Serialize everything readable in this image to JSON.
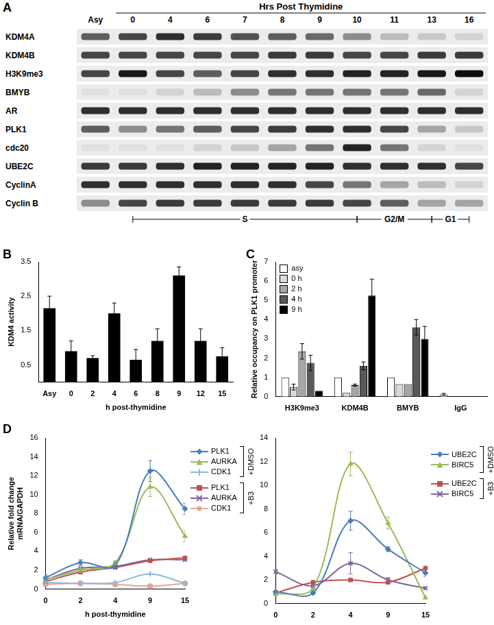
{
  "chart_data": [
    {
      "type": "blot",
      "label": "A",
      "header": "Hrs Post Thymidine",
      "header_span": [
        "0",
        "16"
      ],
      "categories": [
        "Asy",
        "0",
        "4",
        "6",
        "7",
        "8",
        "9",
        "10",
        "11",
        "13",
        "16"
      ],
      "series": [
        {
          "name": "KDM4A",
          "values": [
            0.6,
            0.7,
            0.8,
            0.75,
            0.65,
            0.6,
            0.55,
            0.4,
            0.2,
            0.15,
            0.1
          ]
        },
        {
          "name": "KDM4B",
          "values": [
            0.7,
            0.7,
            0.7,
            0.7,
            0.7,
            0.75,
            0.75,
            0.7,
            0.7,
            0.75,
            0.75
          ]
        },
        {
          "name": "H3K9me3",
          "values": [
            0.7,
            0.9,
            0.7,
            0.6,
            0.7,
            0.8,
            0.8,
            0.85,
            0.85,
            0.9,
            0.95
          ]
        },
        {
          "name": "BMYB",
          "values": [
            0.05,
            0.05,
            0.1,
            0.2,
            0.4,
            0.5,
            0.5,
            0.5,
            0.5,
            0.55,
            0.1
          ]
        },
        {
          "name": "AR",
          "values": [
            0.8,
            0.8,
            0.8,
            0.8,
            0.8,
            0.8,
            0.8,
            0.8,
            0.8,
            0.8,
            0.8
          ]
        },
        {
          "name": "PLK1",
          "values": [
            0.6,
            0.4,
            0.5,
            0.6,
            0.7,
            0.75,
            0.8,
            0.8,
            0.7,
            0.3,
            0.15
          ]
        },
        {
          "name": "cdc20",
          "values": [
            0.05,
            0.05,
            0.05,
            0.1,
            0.15,
            0.3,
            0.5,
            0.85,
            0.5,
            0.1,
            0.05
          ]
        },
        {
          "name": "UBE2C",
          "values": [
            0.75,
            0.75,
            0.8,
            0.85,
            0.85,
            0.85,
            0.85,
            0.8,
            0.8,
            0.8,
            0.7
          ]
        },
        {
          "name": "CyclinA",
          "values": [
            0.8,
            0.8,
            0.8,
            0.8,
            0.8,
            0.8,
            0.7,
            0.5,
            0.3,
            0.2,
            0.1
          ]
        },
        {
          "name": "Cyclin B",
          "values": [
            0.4,
            0.7,
            0.75,
            0.75,
            0.75,
            0.75,
            0.75,
            0.7,
            0.6,
            0.3,
            0.3
          ]
        }
      ],
      "phases": [
        {
          "label": "S",
          "from": "0",
          "to": "10"
        },
        {
          "label": "G2/M",
          "from": "10",
          "to": "13"
        },
        {
          "label": "G1",
          "from": "13",
          "to": "16"
        }
      ]
    },
    {
      "type": "bar",
      "label": "B",
      "x_label": "h post-thymidine",
      "y_label": "KDM4 activity",
      "categories": [
        "Asy",
        "0",
        "2",
        "4",
        "6",
        "8",
        "9",
        "12",
        "15"
      ],
      "values": [
        2.15,
        0.9,
        0.7,
        2.0,
        0.65,
        1.2,
        3.1,
        1.2,
        0.75
      ],
      "errors": [
        0.35,
        0.3,
        0.07,
        0.3,
        0.3,
        0.35,
        0.25,
        0.35,
        0.25
      ],
      "color": "#000000",
      "ylim": [
        0,
        3.5
      ],
      "yticks": [
        0.5,
        1.5,
        2.5,
        3.5
      ],
      "grid": false
    },
    {
      "type": "bar",
      "label": "C",
      "y_label": "Relative occupancy on PLK1 promoter",
      "categories": [
        "H3K9me3",
        "KDM4B",
        "BMYB",
        "IgG"
      ],
      "series": [
        {
          "name": "asy",
          "color": "#ffffff",
          "values": [
            1,
            1,
            1,
            0.12
          ],
          "errors": [
            0,
            0,
            0,
            0.05
          ]
        },
        {
          "name": "0 h",
          "color": "#d9d9d9",
          "values": [
            0.5,
            0.2,
            0.65,
            null
          ],
          "errors": [
            0.15,
            0,
            0,
            null
          ]
        },
        {
          "name": "2 h",
          "color": "#a6a6a6",
          "values": [
            2.35,
            0.6,
            0.65,
            null
          ],
          "errors": [
            0.4,
            0.05,
            0,
            null
          ]
        },
        {
          "name": "4 h",
          "color": "#595959",
          "values": [
            1.75,
            1.6,
            3.6,
            null
          ],
          "errors": [
            0.4,
            0.2,
            0.4,
            null
          ]
        },
        {
          "name": "9 h",
          "color": "#000000",
          "values": [
            0.3,
            5.25,
            3.0,
            null
          ],
          "errors": [
            0,
            0.85,
            0.65,
            null
          ]
        }
      ],
      "ylim": [
        0,
        7
      ],
      "yticks": [
        0,
        1,
        2,
        3,
        4,
        5,
        6,
        7
      ],
      "grid": false,
      "legend": "upper left"
    },
    {
      "type": "line",
      "label": "D",
      "x_label": "h post-thymidine",
      "y_label": [
        "Relative fold change",
        "mRNA/GAPDH"
      ],
      "categories": [
        "0",
        "2",
        "4",
        "9",
        "15"
      ],
      "series": [
        {
          "name": "PLK1",
          "group": "+DMSO",
          "color": "#4a7ebb",
          "marker": "diamond",
          "values": [
            1.2,
            2.8,
            2.5,
            12.5,
            8.5
          ],
          "errors": [
            0.3,
            0.3,
            0.3,
            1.1,
            0.6
          ]
        },
        {
          "name": "AURKA",
          "group": "+DMSO",
          "color": "#9bbb59",
          "marker": "triangle",
          "values": [
            1.0,
            2.0,
            2.8,
            10.8,
            5.6
          ],
          "errors": [
            0.2,
            0.2,
            0.2,
            1.0,
            0.6
          ]
        },
        {
          "name": "CDK1",
          "group": "+DMSO",
          "color": "#8fb8de",
          "marker": "cross",
          "values": [
            0.7,
            0.6,
            0.7,
            1.6,
            0.6
          ]
        },
        {
          "name": "PLK1",
          "group": "+B3",
          "color": "#c0504d",
          "marker": "square",
          "values": [
            0.8,
            1.8,
            2.3,
            3.0,
            3.3
          ]
        },
        {
          "name": "AURKA",
          "group": "+B3",
          "color": "#8064a2",
          "marker": "x",
          "values": [
            1.0,
            2.2,
            2.4,
            3.1,
            3.1
          ]
        },
        {
          "name": "CDK1",
          "group": "+B3",
          "color": "#e6a59a",
          "marker": "circle",
          "values": [
            0.5,
            0.6,
            0.5,
            0.3,
            0.6
          ]
        }
      ],
      "ylim": [
        0,
        16
      ],
      "yticks": [
        0,
        2,
        4,
        6,
        8,
        10,
        12,
        14,
        16
      ],
      "grid": false,
      "legend": "right"
    },
    {
      "type": "line",
      "categories": [
        "0",
        "2",
        "4",
        "9",
        "15"
      ],
      "series": [
        {
          "name": "UBE2C",
          "group": "+DMSO",
          "color": "#4a7ebb",
          "marker": "diamond",
          "values": [
            1.0,
            0.9,
            7.0,
            4.6,
            2.6
          ],
          "errors": [
            0.1,
            0.1,
            0.8,
            0.2,
            0.3
          ]
        },
        {
          "name": "BIRC5",
          "group": "+DMSO",
          "color": "#9bbb59",
          "marker": "triangle",
          "values": [
            0.8,
            1.3,
            11.8,
            6.8,
            0.5
          ],
          "errors": [
            0.1,
            0.1,
            1.0,
            0.5,
            0.1
          ]
        },
        {
          "name": "UBE2C",
          "group": "+B3",
          "color": "#c0504d",
          "marker": "square",
          "values": [
            0.9,
            1.8,
            2.0,
            1.8,
            3.0
          ]
        },
        {
          "name": "BIRC5",
          "group": "+B3",
          "color": "#8064a2",
          "marker": "x",
          "values": [
            2.7,
            1.5,
            3.4,
            2.0,
            1.3
          ],
          "errors": [
            0.2,
            0.1,
            0.9,
            0.2,
            0.1
          ]
        }
      ],
      "ylim": [
        0,
        14
      ],
      "yticks": [
        0,
        2,
        4,
        6,
        8,
        10,
        12,
        14
      ],
      "grid": false,
      "legend": "right"
    }
  ]
}
